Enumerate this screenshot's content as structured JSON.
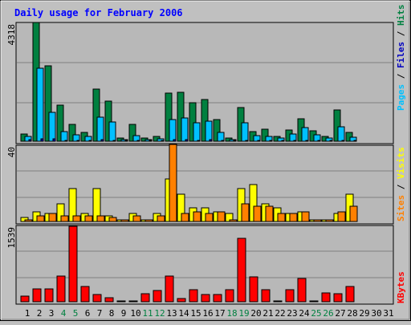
{
  "chart_data": [
    {
      "type": "bar",
      "title": "Daily usage for February 2006",
      "ymax_label": "4318",
      "ylim": [
        0,
        4318
      ],
      "categories": [
        "1",
        "2",
        "3",
        "4",
        "5",
        "6",
        "7",
        "8",
        "9",
        "10",
        "11",
        "12",
        "13",
        "14",
        "15",
        "16",
        "17",
        "18",
        "19",
        "20",
        "21",
        "22",
        "23",
        "24",
        "25",
        "26",
        "27",
        "28",
        "29",
        "30",
        "31"
      ],
      "weekend_days": [
        "4",
        "5",
        "11",
        "12",
        "18",
        "19",
        "25",
        "26"
      ],
      "legend": [
        "Pages",
        "Files",
        "Hits"
      ],
      "series": [
        {
          "name": "Hits",
          "color": "#008040",
          "values": [
            250,
            4318,
            2750,
            1300,
            600,
            320,
            1900,
            1450,
            130,
            600,
            110,
            170,
            1750,
            1780,
            1400,
            1520,
            780,
            120,
            1220,
            350,
            450,
            170,
            420,
            830,
            380,
            170,
            1150,
            330,
            0,
            0,
            0
          ]
        },
        {
          "name": "Files",
          "color": "#00c0ff",
          "values": [
            170,
            2650,
            1050,
            350,
            230,
            170,
            880,
            690,
            70,
            200,
            70,
            90,
            780,
            840,
            660,
            720,
            320,
            60,
            660,
            190,
            170,
            120,
            260,
            500,
            240,
            110,
            520,
            160,
            0,
            0,
            0
          ]
        },
        {
          "name": "Pages",
          "color": "#0000c0",
          "values": [
            50,
            90,
            80,
            40,
            30,
            30,
            50,
            40,
            15,
            30,
            10,
            20,
            50,
            50,
            40,
            50,
            30,
            10,
            40,
            30,
            30,
            20,
            30,
            40,
            30,
            20,
            40,
            20,
            0,
            0,
            0
          ]
        }
      ]
    },
    {
      "type": "bar",
      "ymax_label": "40",
      "ylim": [
        0,
        40
      ],
      "categories": [
        "1",
        "2",
        "3",
        "4",
        "5",
        "6",
        "7",
        "8",
        "9",
        "10",
        "11",
        "12",
        "13",
        "14",
        "15",
        "16",
        "17",
        "18",
        "19",
        "20",
        "21",
        "22",
        "23",
        "24",
        "25",
        "26",
        "27",
        "28",
        "29",
        "30",
        "31"
      ],
      "legend": [
        "Sites",
        "Visits"
      ],
      "series": [
        {
          "name": "Visits",
          "color": "#ffff00",
          "values": [
            2,
            5,
            4,
            9,
            17,
            4,
            17,
            3,
            1,
            4,
            1,
            4,
            22,
            14,
            7,
            7,
            5,
            4,
            17,
            19,
            9,
            7,
            4,
            5,
            1,
            1,
            4,
            14,
            0,
            0,
            0
          ]
        },
        {
          "name": "Sites",
          "color": "#ff8000",
          "values": [
            1,
            3,
            4,
            3,
            3,
            3,
            3,
            2,
            1,
            3,
            1,
            3,
            40,
            4,
            5,
            4,
            5,
            1,
            9,
            8,
            8,
            4,
            4,
            5,
            1,
            1,
            5,
            8,
            0,
            0,
            0
          ]
        }
      ]
    },
    {
      "type": "bar",
      "ymax_label": "1539",
      "ylim": [
        0,
        1539
      ],
      "categories": [
        "1",
        "2",
        "3",
        "4",
        "5",
        "6",
        "7",
        "8",
        "9",
        "10",
        "11",
        "12",
        "13",
        "14",
        "15",
        "16",
        "17",
        "18",
        "19",
        "20",
        "21",
        "22",
        "23",
        "24",
        "25",
        "26",
        "27",
        "28",
        "29",
        "30",
        "31"
      ],
      "legend": [
        "KBytes"
      ],
      "series": [
        {
          "name": "KBytes",
          "color": "#ff0000",
          "values": [
            120,
            270,
            270,
            520,
            1539,
            310,
            150,
            90,
            10,
            20,
            160,
            230,
            520,
            70,
            250,
            150,
            150,
            240,
            1300,
            500,
            250,
            10,
            250,
            480,
            10,
            180,
            160,
            310,
            0,
            0,
            0
          ]
        }
      ]
    }
  ]
}
